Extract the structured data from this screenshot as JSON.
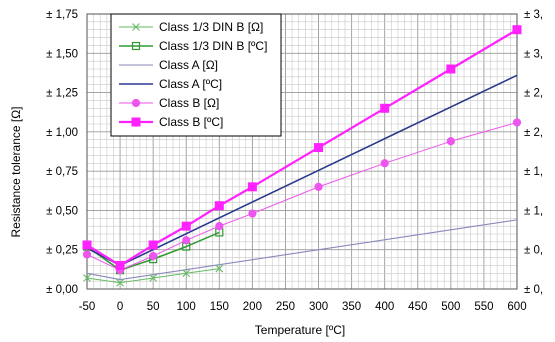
{
  "chart_data": {
    "type": "line",
    "xlabel": "Temperature [ºC]",
    "ylabel": "Resistance tolerance [Ω]",
    "x_ticks": [
      -50,
      0,
      50,
      100,
      150,
      200,
      250,
      300,
      350,
      400,
      450,
      500,
      550,
      600
    ],
    "xlim": [
      -50,
      600
    ],
    "ylim": [
      0,
      1.75
    ],
    "y_tick_labels": [
      "± 0,00",
      "± 0,25",
      "± 0,50",
      "± 0,75",
      "± 1,00",
      "± 1,25",
      "± 1,50",
      "± 1,75"
    ],
    "y2_tick_labels": [
      "± 0,",
      "± 0,",
      "± 1,",
      "± 1,",
      "± 2,",
      "± 2,",
      "± 3,",
      "± 3,"
    ],
    "grid": true,
    "legend_position": "top-left",
    "series": [
      {
        "name": "Class 1/3 DIN B [Ω]",
        "color": "#66bb66",
        "marker": "x",
        "line_width": 1,
        "x": [
          -50,
          0,
          50,
          100,
          150
        ],
        "y": [
          0.07,
          0.04,
          0.07,
          0.1,
          0.13
        ]
      },
      {
        "name": "Class 1/3 DIN B [ºC]",
        "color": "#339933",
        "marker": "square-open",
        "line_width": 1.6,
        "x": [
          -50,
          0,
          50,
          100,
          150
        ],
        "y": [
          0.27,
          0.12,
          0.19,
          0.27,
          0.36
        ]
      },
      {
        "name": "Class A [Ω]",
        "color": "#8888bb",
        "marker": "none",
        "line_width": 1.1,
        "x": [
          -50,
          0,
          600
        ],
        "y": [
          0.1,
          0.06,
          0.44
        ]
      },
      {
        "name": "Class A [ºC]",
        "color": "#2a3a8c",
        "marker": "none",
        "line_width": 1.6,
        "x": [
          -50,
          0,
          600
        ],
        "y": [
          0.26,
          0.15,
          1.36
        ]
      },
      {
        "name": "Class B [Ω]",
        "color": "#ee55ee",
        "marker": "circle",
        "line_width": 1,
        "x": [
          -50,
          0,
          50,
          100,
          150,
          200,
          300,
          400,
          500,
          600
        ],
        "y": [
          0.22,
          0.12,
          0.21,
          0.31,
          0.4,
          0.48,
          0.65,
          0.8,
          0.94,
          1.06
        ]
      },
      {
        "name": "Class B [ºC]",
        "color": "#ff22ff",
        "marker": "square",
        "line_width": 2.2,
        "x": [
          -50,
          0,
          50,
          100,
          150,
          200,
          300,
          400,
          500,
          600
        ],
        "y": [
          0.28,
          0.15,
          0.28,
          0.4,
          0.53,
          0.65,
          0.9,
          1.15,
          1.4,
          1.65
        ]
      }
    ]
  }
}
